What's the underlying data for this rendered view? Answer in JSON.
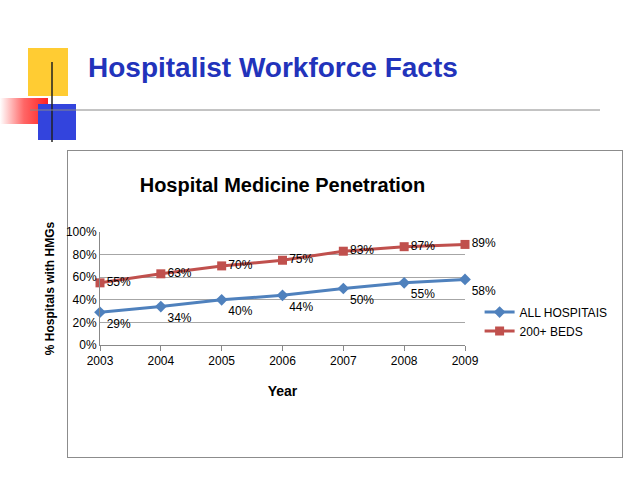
{
  "header": {
    "title": "Hospitalist Workforce Facts"
  },
  "chart_data": {
    "type": "line",
    "title": "Hospital Medicine Penetration",
    "x_label": "Year",
    "y_label": "% Hospitals with HMGs",
    "categories": [
      "2003",
      "2004",
      "2005",
      "2006",
      "2007",
      "2008",
      "2009"
    ],
    "series": [
      {
        "name": "ALL HOSPITAIS",
        "color": "#4f81bd",
        "marker": "diamond",
        "values": [
          29,
          34,
          40,
          44,
          50,
          55,
          58
        ],
        "value_labels": [
          "29%",
          "34%",
          "40%",
          "44%",
          "50%",
          "55%",
          "58%"
        ]
      },
      {
        "name": "200+ BEDS",
        "color": "#c0504d",
        "marker": "square",
        "values": [
          55,
          63,
          70,
          75,
          83,
          87,
          89
        ],
        "value_labels": [
          "55%",
          "63%",
          "70%",
          "75%",
          "83%",
          "87%",
          "89%"
        ]
      }
    ],
    "ylim": [
      0,
      100
    ],
    "yticks": [
      {
        "value": 0,
        "label": "0%"
      },
      {
        "value": 20,
        "label": "20%"
      },
      {
        "value": 40,
        "label": "40%"
      },
      {
        "value": 60,
        "label": "60%"
      },
      {
        "value": 80,
        "label": "80%"
      },
      {
        "value": 100,
        "label": "100%"
      }
    ],
    "grid": true,
    "legend": "right",
    "data_labels": true
  }
}
